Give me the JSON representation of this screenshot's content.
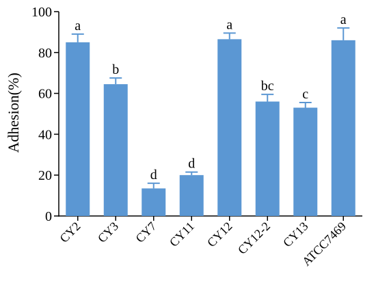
{
  "chart_data": {
    "type": "bar",
    "ylabel": "Adhesion(%)",
    "xlabel": "",
    "ylim": [
      0,
      100
    ],
    "yticks": [
      0,
      20,
      40,
      60,
      80,
      100
    ],
    "categories": [
      "CY2",
      "CY3",
      "CY7",
      "CY11",
      "CY12",
      "CY12-2",
      "CY13",
      "ATCC7469"
    ],
    "values": [
      85,
      64.5,
      13.5,
      20,
      86.5,
      56,
      53,
      86
    ],
    "errors": [
      4,
      3,
      2.5,
      1.5,
      3,
      3.5,
      2.5,
      6
    ],
    "significance_letters": [
      "a",
      "b",
      "d",
      "d",
      "a",
      "bc",
      "c",
      "a"
    ],
    "bar_color": "#5b97d3",
    "error_bar_color": "#5b97d3"
  }
}
